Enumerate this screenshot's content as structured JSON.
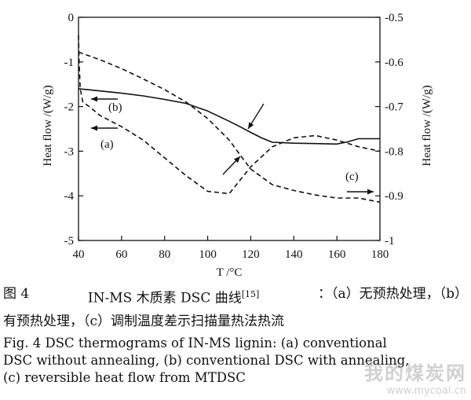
{
  "chart_data": {
    "type": "line",
    "xlabel": "T /°C",
    "ylabel_left": "Heat flow /(W/g)",
    "ylabel_right": "Heat flow /(W/g)",
    "xlim": [
      40,
      180
    ],
    "ylim_left": [
      -5,
      0
    ],
    "ylim_right": [
      -1,
      -0.5
    ],
    "xticks": [
      40,
      60,
      80,
      100,
      120,
      140,
      160,
      180
    ],
    "yticks_left": [
      0,
      -1,
      -2,
      -3,
      -4,
      -5
    ],
    "yticks_right": [
      -0.5,
      -0.6,
      -0.7,
      -0.8,
      -0.9,
      -1
    ],
    "grid": false,
    "series": [
      {
        "axis": "right",
        "style": "solid",
        "x": [
          40,
          50,
          60,
          70,
          80,
          90,
          100,
          110,
          115,
          120,
          125,
          130,
          140,
          150,
          160,
          165,
          170,
          180
        ],
        "y": [
          -0.66,
          -0.665,
          -0.67,
          -0.676,
          -0.684,
          -0.693,
          -0.71,
          -0.733,
          -0.745,
          -0.758,
          -0.77,
          -0.78,
          -0.782,
          -0.783,
          -0.784,
          -0.779,
          -0.772,
          -0.772
        ]
      },
      {
        "axis": "left",
        "style": "dashed",
        "x": [
          40,
          40.3,
          40.8,
          42,
          45,
          50,
          60,
          70,
          80,
          90,
          100,
          110,
          120,
          130,
          140,
          150,
          160,
          170,
          180
        ],
        "y": [
          -0.4,
          -1.0,
          -1.6,
          -1.9,
          -2.0,
          -2.2,
          -2.45,
          -2.75,
          -3.15,
          -3.55,
          -3.9,
          -3.95,
          -3.35,
          -2.9,
          -2.7,
          -2.65,
          -2.75,
          -2.9,
          -3.0
        ]
      },
      {
        "axis": "right",
        "style": "dashed",
        "x": [
          40,
          50,
          60,
          70,
          80,
          90,
          100,
          110,
          115,
          120,
          130,
          140,
          150,
          160,
          170,
          180
        ],
        "y": [
          -0.578,
          -0.595,
          -0.615,
          -0.638,
          -0.662,
          -0.69,
          -0.727,
          -0.775,
          -0.808,
          -0.84,
          -0.875,
          -0.888,
          -0.898,
          -0.905,
          -0.905,
          -0.914
        ]
      }
    ],
    "annotations": [
      "(a)",
      "(b)",
      "(c)"
    ]
  },
  "caption": {
    "zh_line1_parts": [
      "图 4",
      "IN-MS 木质素 DSC 曲线",
      "[15]",
      "：（a）无预热处理，（b）"
    ],
    "zh_line2": "有预热处理，（c）调制温度差示扫描量热法热流",
    "en_line1": "Fig. 4   DSC thermograms of IN-MS lignin: (a) conventional",
    "en_line2": "DSC without annealing, (b) conventional DSC with annealing,",
    "en_line3": "(c) reversible heat flow from MTDSC"
  },
  "watermark": {
    "text": "我的煤炭网",
    "url": "www.mycoal.cn"
  }
}
